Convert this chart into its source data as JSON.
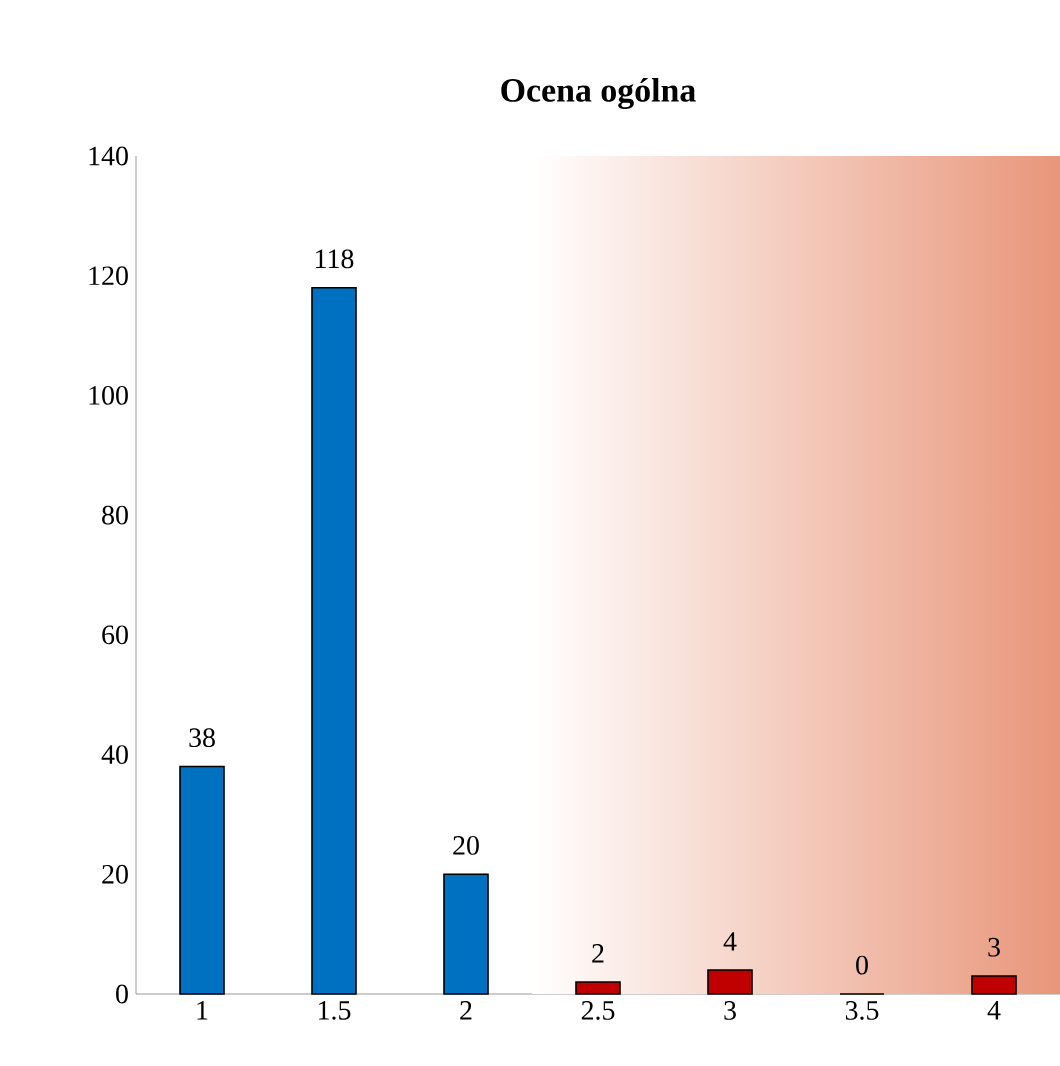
{
  "chart_data": {
    "type": "bar",
    "title": "Ocena ogólna",
    "x": [
      1,
      1.5,
      2,
      2.5,
      3,
      3.5,
      4
    ],
    "values": [
      38,
      118,
      20,
      2,
      4,
      0,
      3
    ],
    "colors": [
      "#0070c0",
      "#0070c0",
      "#0070c0",
      "#c00000",
      "#c00000",
      "#c00000",
      "#c00000"
    ],
    "xlim": [
      0.75,
      4.25
    ],
    "xticks": [
      1,
      1.5,
      2,
      2.5,
      3,
      3.5,
      4
    ],
    "ylim": [
      0,
      140
    ],
    "yticks": [
      0,
      20,
      40,
      60,
      80,
      100,
      120,
      140
    ],
    "data_labels": true,
    "bands": [
      {
        "axis": "x",
        "from": 2.25,
        "to": 4.25,
        "color": "#e8967a"
      }
    ]
  }
}
